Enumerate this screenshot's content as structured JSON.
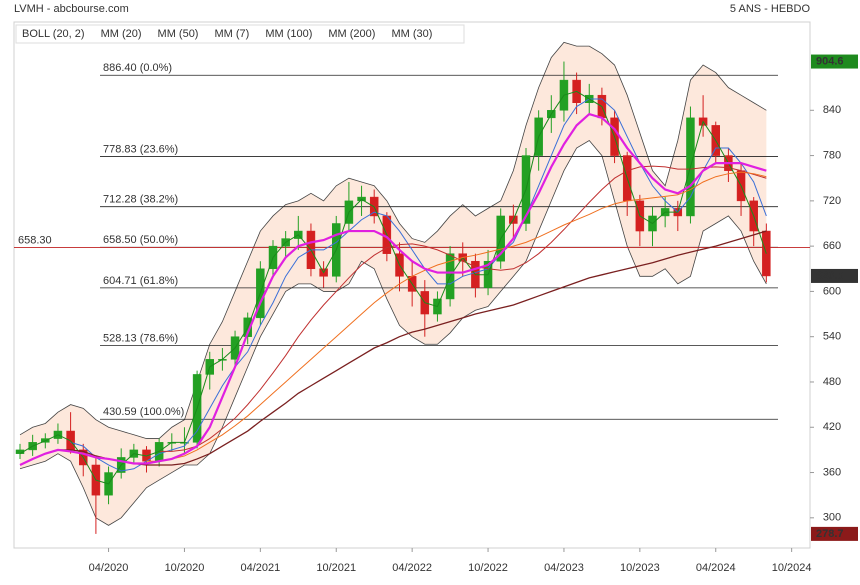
{
  "chart_data": {
    "type": "candlestick",
    "title": "LVMH - abcbourse.com",
    "subtitle": "5 ANS - HEBDO",
    "x": [
      "09/2019",
      "10/2019",
      "11/2019",
      "12/2019",
      "01/2020",
      "02/2020",
      "03/2020",
      "04/2020",
      "05/2020",
      "06/2020",
      "07/2020",
      "08/2020",
      "09/2020",
      "10/2020",
      "11/2020",
      "12/2020",
      "01/2021",
      "02/2021",
      "03/2021",
      "04/2021",
      "05/2021",
      "06/2021",
      "07/2021",
      "08/2021",
      "09/2021",
      "10/2021",
      "11/2021",
      "12/2021",
      "01/2022",
      "02/2022",
      "03/2022",
      "04/2022",
      "05/2022",
      "06/2022",
      "07/2022",
      "08/2022",
      "09/2022",
      "10/2022",
      "11/2022",
      "12/2022",
      "01/2023",
      "02/2023",
      "03/2023",
      "04/2023",
      "05/2023",
      "06/2023",
      "07/2023",
      "08/2023",
      "09/2023",
      "10/2023",
      "11/2023",
      "12/2023",
      "01/2024",
      "02/2024",
      "03/2024",
      "04/2024",
      "05/2024",
      "06/2024",
      "07/2024",
      "08/2024"
    ],
    "open": [
      385,
      390,
      400,
      405,
      415,
      390,
      370,
      330,
      360,
      380,
      390,
      375,
      400,
      400,
      400,
      490,
      510,
      510,
      540,
      565,
      630,
      660,
      670,
      680,
      630,
      620,
      690,
      720,
      725,
      700,
      650,
      620,
      600,
      570,
      590,
      650,
      640,
      605,
      640,
      700,
      690,
      780,
      830,
      840,
      880,
      850,
      860,
      830,
      780,
      720,
      680,
      700,
      710,
      700,
      830,
      820,
      780,
      760,
      720,
      680
    ],
    "high": [
      398,
      410,
      412,
      425,
      440,
      398,
      380,
      368,
      392,
      398,
      395,
      405,
      412,
      420,
      495,
      520,
      525,
      548,
      572,
      640,
      668,
      680,
      700,
      690,
      640,
      700,
      745,
      740,
      735,
      705,
      665,
      640,
      615,
      600,
      660,
      665,
      650,
      655,
      710,
      715,
      790,
      840,
      860,
      904.6,
      890,
      875,
      870,
      840,
      785,
      728,
      712,
      725,
      720,
      845,
      860,
      825,
      790,
      770,
      725,
      690
    ],
    "low": [
      378,
      382,
      392,
      398,
      385,
      355,
      278.7,
      318,
      352,
      372,
      360,
      368,
      388,
      385,
      392,
      470,
      495,
      500,
      530,
      555,
      620,
      645,
      655,
      620,
      605,
      612,
      680,
      700,
      690,
      640,
      600,
      580,
      540,
      560,
      580,
      620,
      592,
      595,
      630,
      670,
      680,
      760,
      810,
      825,
      835,
      835,
      820,
      770,
      700,
      660,
      660,
      685,
      680,
      690,
      805,
      770,
      745,
      700,
      660,
      612
    ],
    "close": [
      390,
      400,
      405,
      415,
      390,
      370,
      330,
      360,
      380,
      390,
      375,
      400,
      400,
      400,
      490,
      510,
      510,
      540,
      565,
      630,
      660,
      670,
      680,
      630,
      620,
      690,
      720,
      725,
      700,
      650,
      620,
      600,
      570,
      590,
      650,
      640,
      605,
      640,
      700,
      690,
      780,
      830,
      840,
      880,
      850,
      860,
      830,
      780,
      720,
      680,
      700,
      710,
      700,
      830,
      820,
      780,
      760,
      720,
      680,
      620.5
    ],
    "up_color": "#23a023",
    "down_color": "#d42020",
    "bollinger": {
      "name": "BOLL (20, 2)",
      "color": "#444444",
      "fill": "#fbd9c4",
      "upper": [
        410,
        420,
        425,
        440,
        450,
        445,
        430,
        420,
        415,
        410,
        405,
        405,
        420,
        430,
        480,
        530,
        560,
        600,
        640,
        680,
        700,
        715,
        720,
        730,
        720,
        740,
        750,
        745,
        740,
        720,
        690,
        670,
        665,
        680,
        700,
        715,
        700,
        710,
        720,
        760,
        820,
        870,
        910,
        930,
        925,
        925,
        915,
        900,
        860,
        810,
        760,
        740,
        800,
        880,
        900,
        890,
        870,
        860,
        850,
        840
      ],
      "lower": [
        365,
        370,
        375,
        385,
        375,
        340,
        300,
        290,
        300,
        320,
        340,
        350,
        360,
        370,
        370,
        385,
        420,
        460,
        500,
        540,
        570,
        600,
        610,
        610,
        600,
        600,
        610,
        640,
        630,
        590,
        555,
        540,
        530,
        530,
        545,
        565,
        575,
        580,
        600,
        620,
        640,
        680,
        720,
        760,
        790,
        800,
        780,
        720,
        660,
        620,
        620,
        630,
        610,
        620,
        680,
        690,
        700,
        680,
        640,
        610
      ]
    },
    "series": [
      {
        "name": "MM (20)",
        "color": "#3a6fd8",
        "width": 1,
        "values": [
          null,
          null,
          null,
          null,
          400,
          395,
          380,
          370,
          362,
          365,
          375,
          385,
          390,
          395,
          415,
          445,
          475,
          500,
          520,
          555,
          585,
          620,
          645,
          655,
          655,
          665,
          680,
          695,
          705,
          700,
          680,
          655,
          630,
          610,
          610,
          620,
          625,
          630,
          650,
          665,
          700,
          740,
          780,
          820,
          845,
          855,
          855,
          840,
          805,
          770,
          740,
          720,
          705,
          725,
          760,
          790,
          790,
          770,
          745,
          700
        ]
      },
      {
        "name": "MM (50)",
        "color": "#c03030",
        "width": 1,
        "values": [
          null,
          null,
          null,
          null,
          null,
          null,
          null,
          null,
          null,
          null,
          null,
          388,
          388,
          390,
          395,
          405,
          418,
          432,
          450,
          470,
          492,
          515,
          540,
          562,
          582,
          600,
          618,
          635,
          648,
          658,
          662,
          663,
          660,
          655,
          648,
          640,
          633,
          630,
          628,
          630,
          638,
          650,
          665,
          682,
          700,
          718,
          735,
          750,
          760,
          765,
          766,
          765,
          762,
          762,
          764,
          765,
          764,
          760,
          755,
          750
        ]
      },
      {
        "name": "MM (7)",
        "color": "#1a8a1a",
        "width": 1,
        "values": [
          385,
          395,
          402,
          410,
          402,
          380,
          350,
          345,
          370,
          385,
          382,
          388,
          400,
          400,
          445,
          500,
          510,
          525,
          552,
          598,
          645,
          665,
          675,
          655,
          625,
          655,
          705,
          722,
          712,
          675,
          635,
          610,
          585,
          580,
          620,
          645,
          622,
          622,
          670,
          695,
          735,
          805,
          835,
          860,
          865,
          855,
          845,
          805,
          750,
          700,
          690,
          705,
          705,
          765,
          825,
          800,
          770,
          740,
          700,
          650
        ]
      },
      {
        "name": "MM (100)",
        "color": "#f07020",
        "width": 1,
        "values": [
          null,
          null,
          null,
          null,
          null,
          null,
          null,
          null,
          null,
          null,
          375,
          375,
          378,
          382,
          390,
          400,
          410,
          422,
          435,
          450,
          465,
          480,
          495,
          510,
          525,
          540,
          555,
          570,
          585,
          598,
          610,
          620,
          628,
          635,
          640,
          645,
          648,
          652,
          656,
          660,
          665,
          672,
          680,
          688,
          695,
          702,
          710,
          716,
          720,
          722,
          724,
          726,
          728,
          735,
          745,
          752,
          756,
          758,
          756,
          752
        ]
      },
      {
        "name": "MM (200)",
        "color": "#7a2020",
        "width": 1.3,
        "values": [
          null,
          null,
          null,
          390,
          390,
          388,
          382,
          378,
          375,
          372,
          370,
          370,
          370,
          372,
          378,
          385,
          395,
          405,
          415,
          428,
          440,
          452,
          465,
          475,
          485,
          495,
          505,
          515,
          525,
          532,
          540,
          546,
          550,
          555,
          560,
          565,
          570,
          574,
          578,
          582,
          588,
          594,
          600,
          606,
          612,
          618,
          622,
          626,
          630,
          634,
          638,
          643,
          648,
          652,
          656,
          660,
          665,
          670,
          675,
          680
        ]
      },
      {
        "name": "MM (30)",
        "color": "#e020e0",
        "width": 2.2,
        "values": [
          370,
          378,
          385,
          390,
          388,
          385,
          380,
          378,
          375,
          372,
          372,
          375,
          378,
          385,
          395,
          420,
          460,
          500,
          545,
          585,
          620,
          645,
          660,
          665,
          668,
          675,
          680,
          680,
          680,
          672,
          655,
          640,
          630,
          625,
          625,
          625,
          630,
          635,
          650,
          670,
          700,
          730,
          765,
          795,
          820,
          835,
          830,
          815,
          790,
          770,
          750,
          735,
          730,
          740,
          760,
          770,
          770,
          770,
          765,
          760
        ]
      }
    ],
    "fibonacci": [
      {
        "value": 886.4,
        "label": "886.40  (0.0%)"
      },
      {
        "value": 778.83,
        "label": "778.83  (23.6%)"
      },
      {
        "value": 712.28,
        "label": "712.28  (38.2%)"
      },
      {
        "value": 658.5,
        "label": "658.50  (50.0%)"
      },
      {
        "value": 604.71,
        "label": "604.71  (61.8%)"
      },
      {
        "value": 528.13,
        "label": "528.13  (78.6%)"
      },
      {
        "value": 430.59,
        "label": "430.59  (100.0%)"
      }
    ],
    "reference": {
      "value": 658.3,
      "label": "658.30",
      "color": "#c02020"
    },
    "ylim": [
      260,
      957
    ],
    "yticks": [
      300,
      360,
      420,
      480,
      540,
      600,
      660,
      720,
      780,
      840
    ],
    "xticks": [
      "04/2020",
      "10/2020",
      "04/2021",
      "10/2021",
      "04/2022",
      "10/2022",
      "04/2023",
      "10/2023",
      "04/2024",
      "10/2024"
    ],
    "tag_colors": {
      "max": "#1e8a1e",
      "last": "#333333",
      "min": "#8b1a1a"
    }
  }
}
